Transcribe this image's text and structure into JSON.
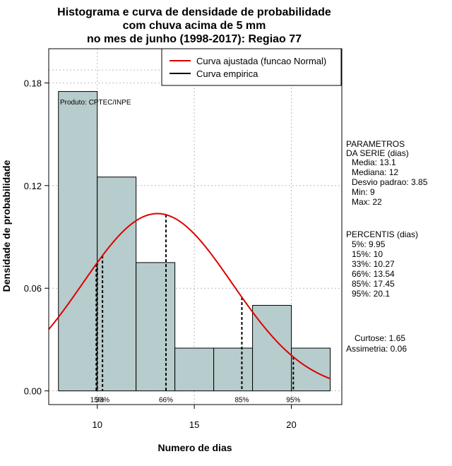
{
  "chart_data": {
    "type": "bar",
    "title_lines": [
      "Histograma e curva de densidade de probabilidade",
      "com chuva acima de 5 mm",
      "no mes de junho (1998-2017): Regiao 77"
    ],
    "xlabel": "Numero de dias",
    "ylabel": "Densidade de probabilidade",
    "xlim": [
      7.5,
      22.6
    ],
    "ylim": [
      -0.008,
      0.2
    ],
    "x_ticks": [
      10,
      15,
      20
    ],
    "y_ticks": [
      0.0,
      0.06,
      0.12,
      0.18
    ],
    "x_tick_labels": [
      "10",
      "15",
      "20"
    ],
    "y_tick_labels": [
      "0.00",
      "0.06",
      "0.12",
      "0.18"
    ],
    "grid": true,
    "bins": [
      {
        "start": 8,
        "end": 10,
        "density": 0.175
      },
      {
        "start": 10,
        "end": 12,
        "density": 0.125
      },
      {
        "start": 12,
        "end": 14,
        "density": 0.075
      },
      {
        "start": 14,
        "end": 16,
        "density": 0.025
      },
      {
        "start": 16,
        "end": 18,
        "density": 0.025
      },
      {
        "start": 18,
        "end": 20,
        "density": 0.05
      },
      {
        "start": 20,
        "end": 22,
        "density": 0.025
      }
    ],
    "normal_curve": {
      "mean": 13.1,
      "sd": 3.85
    },
    "percentile_lines": [
      {
        "label": "5%",
        "value": 9.95
      },
      {
        "label": "15%",
        "value": 10
      },
      {
        "label": "33%",
        "value": 10.27
      },
      {
        "label": "66%",
        "value": 13.54
      },
      {
        "label": "85%",
        "value": 17.45
      },
      {
        "label": "95%",
        "value": 20.1
      }
    ],
    "percentile_markers_shown": [
      "15%",
      "33%",
      "66%",
      "85%",
      "95%"
    ],
    "legend": {
      "position": "top-right",
      "entries": [
        {
          "label": "Curva ajustada (funcao Normal)",
          "color": "#dd0000"
        },
        {
          "label": "Curva empirica",
          "color": "#000000"
        }
      ]
    },
    "annotation": "Produto: CPTEC/INPE",
    "colors": {
      "bar_fill": "#b7cccc",
      "curve": "#dd0000",
      "grid": "#bbbbbb"
    }
  },
  "side_panel": {
    "params_lines": [
      "PARAMETROS",
      "DA SERIE (dias)",
      "Media: 13.1",
      "Mediana: 12",
      "Desvio padrao: 3.85",
      "Min: 9",
      "Max: 22"
    ],
    "percentis_lines": [
      "PERCENTIS (dias)",
      "5%: 9.95",
      "15%: 10",
      "33%: 10.27",
      "66%: 13.54",
      "85%: 17.45",
      "95%: 20.1"
    ],
    "stats_lines": [
      "Curtose: 1.65",
      "Assimetria: 0.06"
    ]
  }
}
